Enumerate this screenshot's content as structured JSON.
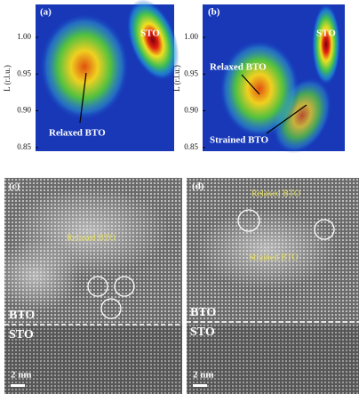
{
  "panels": [
    {
      "label": "(a)",
      "y_axis_label": "L (r.l.u.)",
      "yticks": [
        "1.00",
        "0.95",
        "0.90",
        "0.85"
      ],
      "annotations": [
        "STO",
        "Relaxed BTO"
      ]
    },
    {
      "label": "(b)",
      "y_axis_label": "L (r.l.u.)",
      "yticks": [
        "1.00",
        "0.95",
        "0.90",
        "0.85"
      ],
      "annotations": [
        "Relaxed BTO",
        "STO",
        "Strained BTO"
      ]
    },
    {
      "label": "(c)",
      "annotations": [
        "Relaxed BTO",
        "BTO",
        "STO"
      ],
      "scale_bar": "2 nm"
    },
    {
      "label": "(d)",
      "annotations": [
        "Relaxed BTO",
        "Strained BTO",
        "BTO",
        "STO"
      ],
      "scale_bar": "2 nm"
    }
  ]
}
